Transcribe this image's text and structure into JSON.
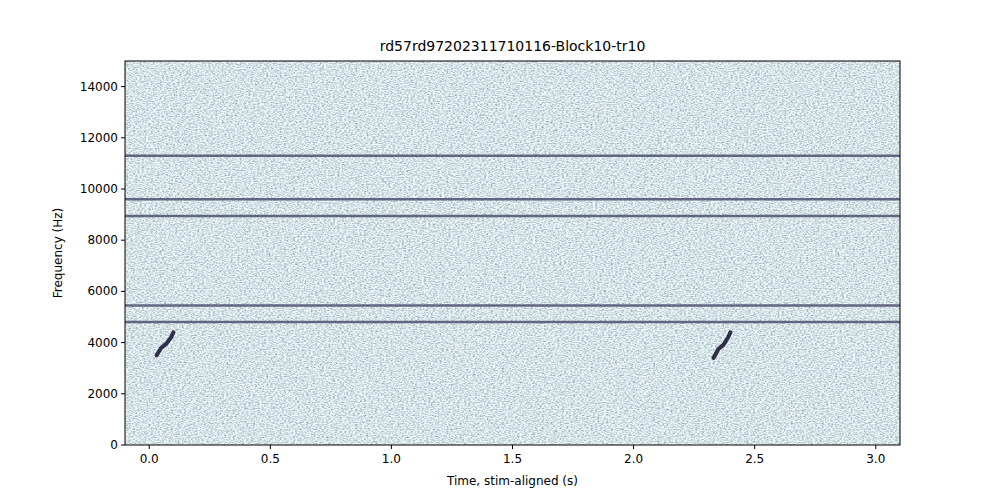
{
  "chart_data": {
    "type": "spectrogram",
    "title": "rd57rd97202311710116-Block10-tr10",
    "x_label": "Time, stim-aligned (s)",
    "y_label": "Frequency (Hz)",
    "xlim": [
      -0.1,
      3.1
    ],
    "ylim": [
      0,
      15000
    ],
    "xticks": [
      {
        "value": 0,
        "label": "0.0"
      },
      0.5,
      {
        "value": 1,
        "label": "1.0"
      },
      1.5,
      {
        "value": 2,
        "label": "2.0"
      },
      2.5,
      {
        "value": 3,
        "label": "3.0"
      }
    ],
    "yticks": [
      0,
      2000,
      4000,
      6000,
      8000,
      10000,
      12000,
      14000
    ],
    "noise_bands": [
      11300,
      9600,
      8950,
      5450,
      4800
    ],
    "events": [
      {
        "x": [
          0.03,
          0.05,
          0.07,
          0.09,
          0.1
        ],
        "y": [
          3500,
          3800,
          3950,
          4200,
          4400
        ]
      },
      {
        "x": [
          2.33,
          2.35,
          2.37,
          2.39,
          2.4
        ],
        "y": [
          3400,
          3750,
          3900,
          4200,
          4400
        ]
      }
    ],
    "color": "#2e2f4a"
  }
}
